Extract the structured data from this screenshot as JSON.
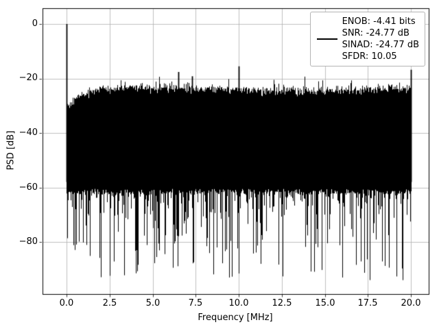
{
  "figure": {
    "xlabel": "Frequency [MHz]",
    "ylabel": "PSD [dB]",
    "yticks": [
      "0",
      "−20",
      "−40",
      "−60",
      "−80"
    ],
    "xticks": [
      "0.0",
      "2.5",
      "5.0",
      "7.5",
      "10.0",
      "12.5",
      "15.0",
      "17.5",
      "20.0"
    ],
    "legend": {
      "entries": [
        "ENOB: -4.41 bits",
        "SNR: -24.77 dB",
        "SINAD: -24.77 dB",
        "SFDR: 10.05"
      ],
      "line_color": "#000000"
    }
  },
  "chart_data": {
    "type": "line",
    "title": "",
    "xlabel": "Frequency [MHz]",
    "ylabel": "PSD [dB]",
    "xlim": [
      -1.394,
      21.034
    ],
    "ylim": [
      -99.1,
      5.79
    ],
    "xticks": [
      0,
      2.5,
      5,
      7.5,
      10,
      12.5,
      15,
      17.5,
      20
    ],
    "yticks": [
      0,
      -20,
      -40,
      -60,
      -80
    ],
    "grid": true,
    "grid_color": "#b0b0b0",
    "series_color": "#000000",
    "legend_position": "upper right",
    "legend_entries": [
      "ENOB: -4.41 bits",
      "SNR: -24.77 dB",
      "SINAD: -24.77 dB",
      "SFDR: 10.05"
    ],
    "metrics": {
      "enob_bits": -4.41,
      "snr_db": -24.77,
      "sinad_db": -24.77,
      "sfdr": 10.05
    },
    "noise": {
      "freq_range_mhz": [
        0,
        20
      ],
      "columns": 503,
      "seed": 42,
      "top_envelope_db": -23.9,
      "top_jitter_db": 1.8,
      "dc_rolloff_db": 6.2,
      "dc_rolloff_tau_mhz": 0.85,
      "dense_band_bottom_db": -60.5,
      "bottom_spike_depth_db": 33,
      "min_db": -94
    },
    "spurs": [
      {
        "freq_mhz": 0.0,
        "psd_db": 0.0
      },
      {
        "freq_mhz": 6.5,
        "psd_db": -17.6
      },
      {
        "freq_mhz": 7.3,
        "psd_db": -19.2
      },
      {
        "freq_mhz": 10.0,
        "psd_db": -15.5
      },
      {
        "freq_mhz": 20.0,
        "psd_db": -16.8
      }
    ]
  }
}
